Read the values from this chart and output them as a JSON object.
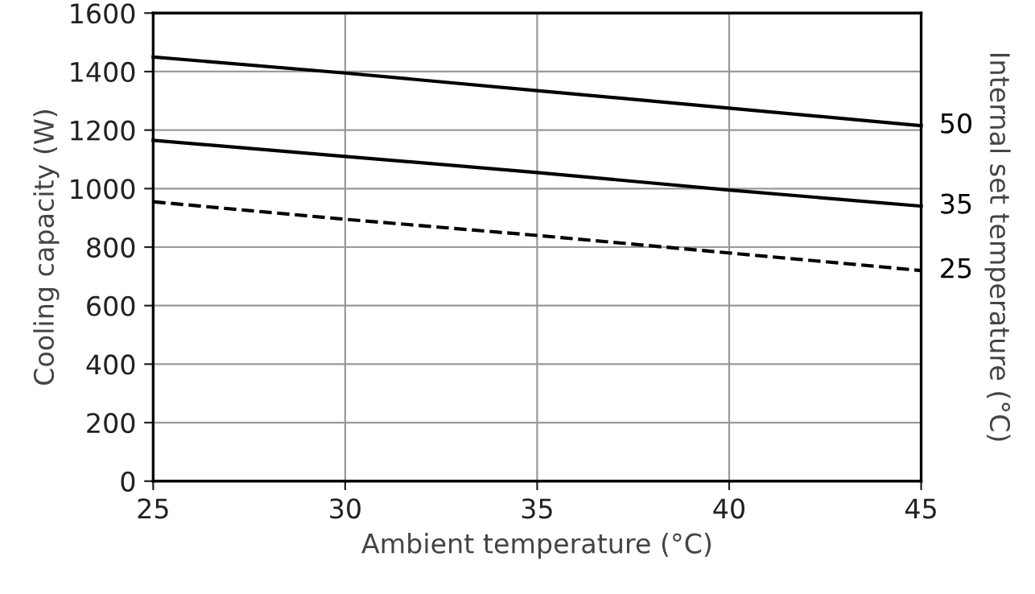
{
  "chart_data": {
    "type": "line",
    "xlabel": "Ambient temperature (°C)",
    "ylabel": "Cooling capacity (W)",
    "y2label": "Internal set temperature (°C)",
    "x": [
      25,
      30,
      35,
      40,
      45
    ],
    "xlim": [
      25,
      45
    ],
    "xticks": [
      25,
      30,
      35,
      40,
      45
    ],
    "ylim": [
      0,
      1600
    ],
    "yticks": [
      0,
      200,
      400,
      600,
      800,
      1000,
      1200,
      1400,
      1600
    ],
    "grid": true,
    "marker": "none",
    "series": [
      {
        "name": "50",
        "color": "#000000",
        "line_style": "solid",
        "values": [
          1450,
          1395,
          1335,
          1275,
          1215
        ]
      },
      {
        "name": "35",
        "color": "#000000",
        "line_style": "solid",
        "values": [
          1165,
          1110,
          1055,
          995,
          940
        ]
      },
      {
        "name": "25",
        "color": "#000000",
        "line_style": "dashed",
        "values": [
          955,
          895,
          840,
          780,
          720
        ]
      }
    ]
  }
}
